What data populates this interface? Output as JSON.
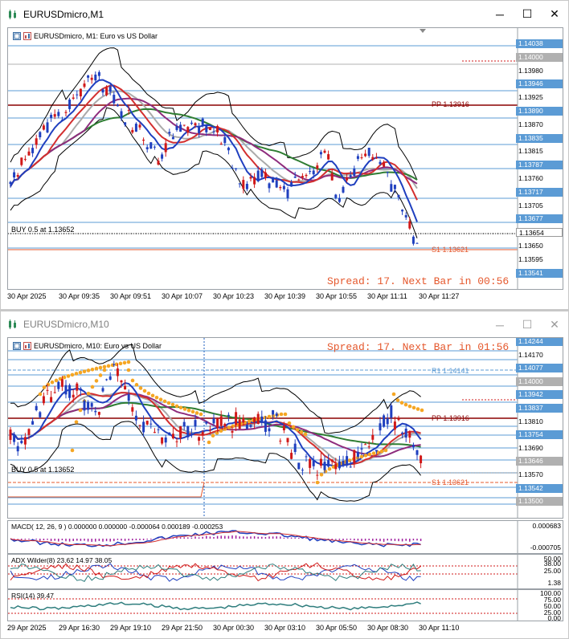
{
  "window1": {
    "title": "EURUSDmicro,M1",
    "header": "EURUSDmicro, M1:  Euro vs US Dollar",
    "spread": "Spread: 17. Next Bar in 00:56",
    "buy_label": "BUY 0.5 at 1.13652",
    "pp_label": "PP 1.13916",
    "s1_label": "S1 1.13621",
    "price_labels": [
      {
        "text": "1.14038",
        "style": "blue"
      },
      {
        "text": "1.14000",
        "style": "gray"
      },
      {
        "text": "1.13980",
        "style": "plain"
      },
      {
        "text": "1.13946",
        "style": "blue"
      },
      {
        "text": "1.13925",
        "style": "plain"
      },
      {
        "text": "1.13890",
        "style": "blue"
      },
      {
        "text": "1.13870",
        "style": "plain"
      },
      {
        "text": "1.13835",
        "style": "blue"
      },
      {
        "text": "1.13815",
        "style": "plain"
      },
      {
        "text": "1.13787",
        "style": "blue"
      },
      {
        "text": "1.13760",
        "style": "plain"
      },
      {
        "text": "1.13717",
        "style": "blue"
      },
      {
        "text": "1.13705",
        "style": "plain"
      },
      {
        "text": "1.13677",
        "style": "blue"
      },
      {
        "text": "1.13654",
        "style": "plainf"
      },
      {
        "text": "1.13650",
        "style": "plain"
      },
      {
        "text": "1.13595",
        "style": "plain"
      },
      {
        "text": "1.13541",
        "style": "blue"
      }
    ],
    "time_labels": [
      "30 Apr 2025",
      "30 Apr 09:35",
      "30 Apr 09:51",
      "30 Apr 10:07",
      "30 Apr 10:23",
      "30 Apr 10:39",
      "30 Apr 10:55",
      "30 Apr 11:11",
      "30 Apr 11:27"
    ]
  },
  "window2": {
    "title": "EURUSDmicro,M10",
    "header": "EURUSDmicro, M10:  Euro vs US Dollar",
    "spread": "Spread: 17. Next Bar in 01:56",
    "buy_label": "BUY 0.5 at 1.13652",
    "r1_label": "R1 1.14141",
    "pp_label": "PP 1.13916",
    "s1_label": "S1 1.13621",
    "price_labels": [
      {
        "text": "1.14244",
        "style": "blue"
      },
      {
        "text": "1.14170",
        "style": "plain"
      },
      {
        "text": "1.14077",
        "style": "blue"
      },
      {
        "text": "1.14000",
        "style": "gray"
      },
      {
        "text": "1.13942",
        "style": "blue"
      },
      {
        "text": "1.13837",
        "style": "blue"
      },
      {
        "text": "1.13810",
        "style": "plain"
      },
      {
        "text": "1.13754",
        "style": "blue"
      },
      {
        "text": "1.13690",
        "style": "plain"
      },
      {
        "text": "1.13646",
        "style": "gray"
      },
      {
        "text": "1.13570",
        "style": "plain"
      },
      {
        "text": "1.13542",
        "style": "blue"
      },
      {
        "text": "1.13500",
        "style": "gray"
      }
    ],
    "macd_label": "MACD( 12, 26, 9 ) 0.000000 0.000000 -0.000064 0.000189 -0.000253",
    "macd_scale": [
      "0.000683",
      "-0.000705"
    ],
    "adx_label": "ADX Wilder(8) 23.62 14.97 38.05",
    "adx_scale": [
      "50.00",
      "38.00",
      "25.00",
      "1.38"
    ],
    "rsi_label": "RSI(14) 39.47",
    "rsi_scale": [
      "100.00",
      "75.00",
      "50.00",
      "25.00",
      "0.00"
    ],
    "time_labels": [
      "29 Apr 2025",
      "29 Apr 16:30",
      "29 Apr 19:10",
      "29 Apr 21:50",
      "30 Apr 00:30",
      "30 Apr 03:10",
      "30 Apr 05:50",
      "30 Apr 08:30",
      "30 Apr 11:10"
    ]
  }
}
